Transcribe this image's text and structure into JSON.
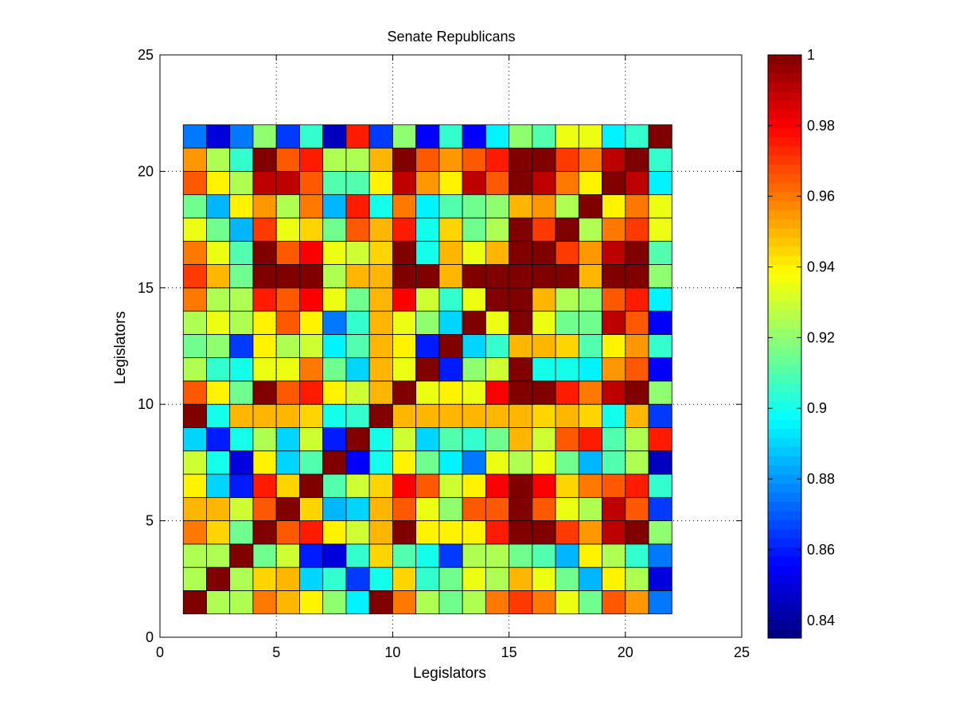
{
  "chart_data": {
    "type": "heatmap",
    "title": "Senate Republicans",
    "xlabel": "Legislators",
    "ylabel": "Legislators",
    "xlim": [
      0,
      25
    ],
    "ylim": [
      0,
      25
    ],
    "xticks": [
      0,
      5,
      10,
      15,
      20,
      25
    ],
    "yticks": [
      0,
      5,
      10,
      15,
      20,
      25
    ],
    "grid": true,
    "colormap": "jet",
    "colorbar": {
      "min": 0.835,
      "max": 1,
      "ticks": [
        0.84,
        0.86,
        0.88,
        0.9,
        0.92,
        0.94,
        0.96,
        0.98,
        1
      ],
      "tick_labels": [
        "0.84",
        "0.86",
        "0.88",
        "0.9",
        "0.92",
        "0.94",
        "0.96",
        "0.98",
        "1"
      ]
    },
    "row_order": "row 1 is the bottom row (y from 1 to 2); each row lists columns 1..21 left to right",
    "values": [
      [
        1.0,
        0.925,
        0.925,
        0.96,
        0.95,
        0.94,
        0.92,
        0.895,
        1.0,
        0.96,
        0.925,
        0.915,
        0.925,
        0.96,
        0.97,
        0.96,
        0.935,
        0.915,
        0.965,
        0.955,
        0.875
      ],
      [
        0.925,
        1.0,
        0.925,
        0.945,
        0.95,
        0.89,
        0.905,
        0.865,
        0.9,
        0.945,
        0.905,
        0.915,
        0.935,
        0.925,
        0.95,
        0.935,
        0.915,
        0.885,
        0.94,
        0.925,
        0.85
      ],
      [
        0.925,
        0.925,
        1.0,
        0.915,
        0.93,
        0.86,
        0.85,
        0.905,
        0.945,
        0.91,
        0.9,
        0.865,
        0.925,
        0.925,
        0.915,
        0.91,
        0.885,
        0.94,
        0.925,
        0.905,
        0.875
      ],
      [
        0.96,
        0.945,
        0.915,
        1.0,
        0.965,
        0.975,
        0.94,
        0.93,
        0.95,
        1.0,
        0.94,
        0.94,
        0.94,
        0.975,
        1.0,
        1.0,
        0.97,
        0.955,
        0.99,
        1.0,
        0.92
      ],
      [
        0.95,
        0.95,
        0.93,
        0.965,
        1.0,
        0.945,
        0.885,
        0.89,
        0.95,
        0.965,
        0.935,
        0.92,
        0.965,
        0.965,
        1.0,
        0.965,
        0.935,
        0.925,
        0.99,
        0.965,
        0.865
      ],
      [
        0.94,
        0.89,
        0.86,
        0.975,
        0.945,
        1.0,
        0.91,
        0.93,
        0.945,
        0.98,
        0.965,
        0.93,
        0.94,
        0.98,
        1.0,
        0.98,
        0.945,
        0.96,
        0.965,
        0.975,
        0.905
      ],
      [
        0.93,
        0.9,
        0.85,
        0.94,
        0.89,
        0.91,
        1.0,
        0.855,
        0.9,
        0.94,
        0.915,
        0.895,
        0.875,
        0.935,
        0.925,
        0.935,
        0.915,
        0.885,
        0.91,
        0.925,
        0.845
      ],
      [
        0.89,
        0.86,
        0.9,
        0.925,
        0.89,
        0.93,
        0.86,
        1.0,
        0.9,
        0.93,
        0.89,
        0.91,
        0.905,
        0.915,
        0.95,
        0.93,
        0.965,
        0.975,
        0.91,
        0.925,
        0.975
      ],
      [
        1.0,
        0.9,
        0.95,
        0.95,
        0.95,
        0.945,
        0.9,
        0.905,
        1.0,
        0.95,
        0.95,
        0.95,
        0.95,
        0.95,
        0.95,
        0.945,
        0.95,
        0.945,
        0.9,
        0.95,
        0.865
      ],
      [
        0.965,
        0.94,
        0.915,
        1.0,
        0.965,
        0.975,
        0.94,
        0.93,
        0.95,
        1.0,
        0.935,
        0.94,
        0.935,
        0.98,
        1.0,
        1.0,
        0.975,
        0.96,
        0.99,
        1.0,
        0.92
      ],
      [
        0.925,
        0.905,
        0.9,
        0.935,
        0.935,
        0.96,
        0.915,
        0.89,
        0.95,
        0.935,
        1.0,
        0.86,
        0.92,
        0.93,
        1.0,
        0.9,
        0.9,
        0.895,
        0.955,
        0.965,
        0.855
      ],
      [
        0.915,
        0.92,
        0.865,
        0.94,
        0.925,
        0.93,
        0.895,
        0.91,
        0.95,
        0.94,
        0.86,
        1.0,
        0.89,
        0.905,
        0.95,
        0.95,
        0.945,
        0.91,
        0.94,
        0.955,
        0.905
      ],
      [
        0.925,
        0.935,
        0.925,
        0.94,
        0.965,
        0.94,
        0.875,
        0.905,
        0.95,
        0.935,
        0.92,
        0.89,
        1.0,
        0.935,
        1.0,
        0.935,
        0.915,
        0.915,
        0.99,
        0.965,
        0.855
      ],
      [
        0.96,
        0.925,
        0.925,
        0.975,
        0.965,
        0.98,
        0.935,
        0.915,
        0.95,
        0.98,
        0.93,
        0.905,
        0.935,
        1.0,
        1.0,
        0.95,
        0.925,
        0.92,
        0.965,
        0.975,
        0.895
      ],
      [
        0.97,
        0.95,
        0.915,
        1.0,
        1.0,
        1.0,
        0.925,
        0.95,
        0.95,
        1.0,
        1.0,
        0.95,
        1.0,
        1.0,
        1.0,
        1.0,
        1.0,
        0.95,
        1.0,
        1.0,
        0.92
      ],
      [
        0.96,
        0.935,
        0.91,
        1.0,
        0.965,
        0.98,
        0.935,
        0.93,
        0.945,
        1.0,
        0.9,
        0.95,
        0.935,
        0.95,
        1.0,
        1.0,
        0.97,
        0.955,
        0.99,
        1.0,
        0.91
      ],
      [
        0.935,
        0.915,
        0.885,
        0.97,
        0.935,
        0.945,
        0.915,
        0.965,
        0.95,
        0.975,
        0.9,
        0.945,
        0.915,
        0.925,
        1.0,
        0.97,
        1.0,
        0.925,
        0.96,
        0.97,
        0.935
      ],
      [
        0.915,
        0.885,
        0.94,
        0.955,
        0.925,
        0.96,
        0.885,
        0.975,
        0.9,
        0.96,
        0.895,
        0.91,
        0.915,
        0.92,
        0.95,
        0.955,
        0.925,
        1.0,
        0.94,
        0.96,
        0.935
      ],
      [
        0.965,
        0.94,
        0.925,
        0.99,
        0.99,
        0.965,
        0.91,
        0.91,
        0.94,
        0.99,
        0.955,
        0.94,
        0.99,
        0.965,
        1.0,
        0.99,
        0.96,
        0.94,
        1.0,
        0.99,
        0.895
      ],
      [
        0.955,
        0.925,
        0.905,
        1.0,
        0.965,
        0.975,
        0.925,
        0.925,
        0.95,
        1.0,
        0.965,
        0.955,
        0.965,
        0.975,
        1.0,
        1.0,
        0.97,
        0.96,
        0.99,
        1.0,
        0.905
      ],
      [
        0.875,
        0.85,
        0.875,
        0.92,
        0.865,
        0.905,
        0.845,
        0.975,
        0.865,
        0.92,
        0.855,
        0.905,
        0.855,
        0.895,
        0.92,
        0.91,
        0.935,
        0.935,
        0.895,
        0.905,
        1.0
      ]
    ]
  }
}
